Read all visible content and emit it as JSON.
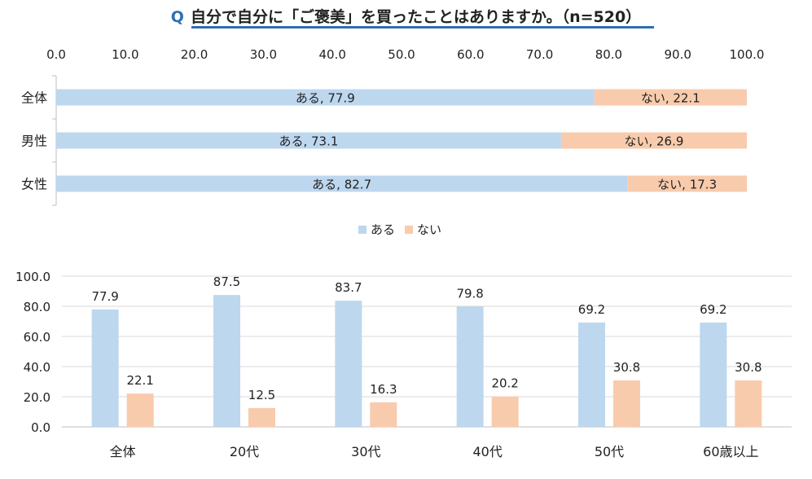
{
  "title": {
    "q_mark": "Q",
    "text": "自分で自分に「ご褒美」を買ったことはありますか。（n=520）"
  },
  "colors": {
    "aru": "#bdd7ee",
    "nai": "#f8cbad",
    "title_accent": "#2f6eb3",
    "axis": "#bfbfbf",
    "text": "#222222"
  },
  "chart_data": [
    {
      "type": "bar",
      "orientation": "horizontal-stacked",
      "categories": [
        "全体",
        "男性",
        "女性"
      ],
      "series": [
        {
          "name": "ある",
          "values": [
            77.9,
            73.1,
            82.7
          ]
        },
        {
          "name": "ない",
          "values": [
            22.1,
            26.9,
            17.3
          ]
        }
      ],
      "xlim": [
        0,
        100
      ],
      "xticks": [
        "0.0",
        "10.0",
        "20.0",
        "30.0",
        "40.0",
        "50.0",
        "60.0",
        "70.0",
        "80.0",
        "90.0",
        "100.0"
      ],
      "legend": [
        "ある",
        "ない"
      ],
      "legend_position": "bottom"
    },
    {
      "type": "bar",
      "orientation": "vertical-grouped",
      "categories": [
        "全体",
        "20代",
        "30代",
        "40代",
        "50代",
        "60歳以上"
      ],
      "series": [
        {
          "name": "ある",
          "values": [
            77.9,
            87.5,
            83.7,
            79.8,
            69.2,
            69.2
          ]
        },
        {
          "name": "ない",
          "values": [
            22.1,
            12.5,
            16.3,
            20.2,
            30.8,
            30.8
          ]
        }
      ],
      "ylim": [
        0,
        100
      ],
      "yticks": [
        "0.0",
        "20.0",
        "40.0",
        "60.0",
        "80.0",
        "100.0"
      ]
    }
  ]
}
